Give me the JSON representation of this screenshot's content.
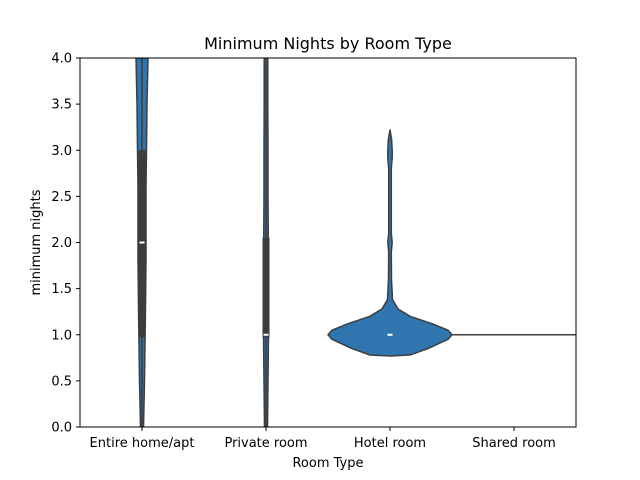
{
  "chart_data": {
    "type": "violin",
    "title": "Minimum Nights by Room Type",
    "xlabel": "Room Type",
    "ylabel": "minimum nights",
    "ylim": [
      0.0,
      4.0
    ],
    "yticks": [
      "0.0",
      "0.5",
      "1.0",
      "1.5",
      "2.0",
      "2.5",
      "3.0",
      "3.5",
      "4.0"
    ],
    "categories": [
      "Entire home/apt",
      "Private room",
      "Hotel room",
      "Shared room"
    ],
    "colors": {
      "violin_fill": "#2f75b0",
      "violin_edge": "#3d3d3d",
      "box": "#3d3d3d",
      "median": "#ffffff"
    },
    "violins": [
      {
        "category": "Entire home/apt",
        "profile": [
          [
            0.0,
            1.5
          ],
          [
            0.5,
            2.5
          ],
          [
            0.9,
            3.0
          ],
          [
            1.3,
            3.5
          ],
          [
            1.8,
            4.0
          ],
          [
            2.2,
            4.0
          ],
          [
            2.6,
            4.0
          ],
          [
            3.0,
            4.5
          ],
          [
            3.5,
            5.0
          ],
          [
            4.0,
            6.0
          ]
        ],
        "box": {
          "q1": 0.97,
          "median": 2.0,
          "q3": 3.0,
          "whisker_low": 0.0,
          "whisker_high": 4.0
        }
      },
      {
        "category": "Private room",
        "profile": [
          [
            0.0,
            1.5
          ],
          [
            0.5,
            2.0
          ],
          [
            1.0,
            2.5
          ],
          [
            1.5,
            2.3
          ],
          [
            2.0,
            2.3
          ],
          [
            2.5,
            2.0
          ],
          [
            3.0,
            2.0
          ],
          [
            3.5,
            1.8
          ],
          [
            4.0,
            1.8
          ]
        ],
        "box": {
          "q1": 0.97,
          "median": 1.0,
          "q3": 2.05,
          "whisker_low": 0.0,
          "whisker_high": 4.0
        }
      },
      {
        "category": "Hotel room",
        "profile": [
          [
            0.77,
            0
          ],
          [
            0.78,
            20
          ],
          [
            0.85,
            38
          ],
          [
            0.95,
            58
          ],
          [
            1.0,
            62
          ],
          [
            1.05,
            58
          ],
          [
            1.12,
            42
          ],
          [
            1.2,
            20
          ],
          [
            1.28,
            8
          ],
          [
            1.38,
            2.5
          ],
          [
            1.6,
            1.5
          ],
          [
            1.9,
            1.3
          ],
          [
            2.0,
            2.2
          ],
          [
            2.1,
            1.3
          ],
          [
            2.8,
            1.3
          ],
          [
            2.92,
            2.2
          ],
          [
            3.0,
            2.2
          ],
          [
            3.12,
            1.6
          ],
          [
            3.22,
            0
          ]
        ],
        "box": {
          "q1": 1.0,
          "median": 1.0,
          "q3": 1.0,
          "whisker_low": 1.0,
          "whisker_high": 1.0
        }
      },
      {
        "category": "Shared room",
        "profile": [],
        "line_value": 1.0
      }
    ]
  }
}
